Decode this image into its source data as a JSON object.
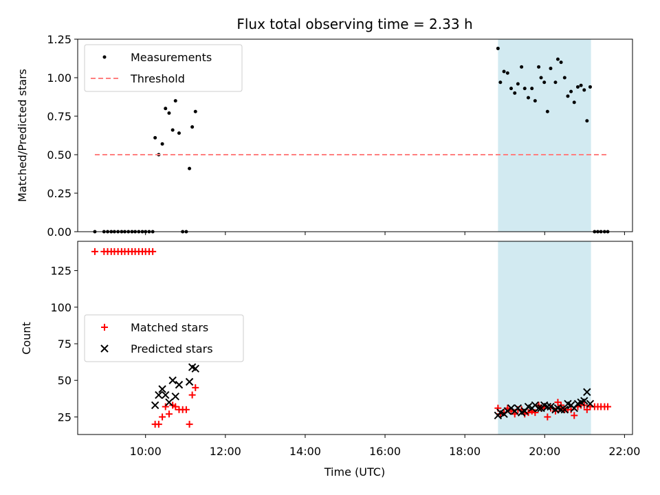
{
  "chart_data": {
    "type": "scatter",
    "title": "Flux total observing time = 2.33 h",
    "xlabel": "Time (UTC)",
    "x_unit": "hours UTC",
    "xlim": [
      8.3,
      22.2
    ],
    "x_ticks": [
      {
        "value": 10,
        "label": "10:00"
      },
      {
        "value": 12,
        "label": "12:00"
      },
      {
        "value": 14,
        "label": "14:00"
      },
      {
        "value": 16,
        "label": "16:00"
      },
      {
        "value": 18,
        "label": "18:00"
      },
      {
        "value": 20,
        "label": "20:00"
      },
      {
        "value": 22,
        "label": "22:00"
      }
    ],
    "shaded_region": {
      "x": [
        18.83,
        21.16
      ],
      "color": "#add8e6"
    },
    "panels": [
      {
        "ylabel": "Matched/Predicted stars",
        "ylim": [
          0,
          1.25
        ],
        "y_ticks": [
          {
            "value": 0,
            "label": "0.00"
          },
          {
            "value": 0.25,
            "label": "0.25"
          },
          {
            "value": 0.5,
            "label": "0.50"
          },
          {
            "value": 0.75,
            "label": "0.75"
          },
          {
            "value": 1.0,
            "label": "1.00"
          },
          {
            "value": 1.25,
            "label": "1.25"
          }
        ],
        "legend": {
          "position": "upper-left",
          "entries": [
            "Measurements",
            "Threshold"
          ]
        },
        "series": [
          {
            "name": "Measurements",
            "marker": "dot",
            "color": "#000000",
            "points": [
              [
                8.73,
                0
              ],
              [
                8.96,
                0
              ],
              [
                9.05,
                0
              ],
              [
                9.14,
                0
              ],
              [
                9.22,
                0
              ],
              [
                9.31,
                0
              ],
              [
                9.4,
                0
              ],
              [
                9.48,
                0
              ],
              [
                9.57,
                0
              ],
              [
                9.66,
                0
              ],
              [
                9.74,
                0
              ],
              [
                9.83,
                0
              ],
              [
                9.92,
                0
              ],
              [
                10.0,
                0
              ],
              [
                10.09,
                0
              ],
              [
                10.18,
                0
              ],
              [
                10.24,
                0.61
              ],
              [
                10.33,
                0.5
              ],
              [
                10.42,
                0.57
              ],
              [
                10.5,
                0.8
              ],
              [
                10.59,
                0.77
              ],
              [
                10.68,
                0.66
              ],
              [
                10.75,
                0.85
              ],
              [
                10.84,
                0.64
              ],
              [
                10.93,
                0
              ],
              [
                11.02,
                0
              ],
              [
                11.1,
                0.41
              ],
              [
                11.17,
                0.68
              ],
              [
                11.25,
                0.78
              ],
              [
                18.83,
                1.19
              ],
              [
                18.89,
                0.97
              ],
              [
                18.98,
                1.04
              ],
              [
                19.07,
                1.03
              ],
              [
                19.16,
                0.93
              ],
              [
                19.25,
                0.9
              ],
              [
                19.33,
                0.96
              ],
              [
                19.42,
                1.07
              ],
              [
                19.5,
                0.93
              ],
              [
                19.59,
                0.87
              ],
              [
                19.68,
                0.93
              ],
              [
                19.76,
                0.85
              ],
              [
                19.85,
                1.07
              ],
              [
                19.91,
                1.0
              ],
              [
                19.99,
                0.97
              ],
              [
                20.07,
                0.78
              ],
              [
                20.15,
                1.06
              ],
              [
                20.27,
                0.97
              ],
              [
                20.33,
                1.12
              ],
              [
                20.41,
                1.1
              ],
              [
                20.5,
                1.0
              ],
              [
                20.58,
                0.88
              ],
              [
                20.66,
                0.91
              ],
              [
                20.74,
                0.84
              ],
              [
                20.83,
                0.94
              ],
              [
                20.91,
                0.95
              ],
              [
                20.99,
                0.92
              ],
              [
                21.06,
                0.72
              ],
              [
                21.14,
                0.94
              ],
              [
                21.25,
                0
              ],
              [
                21.33,
                0
              ],
              [
                21.41,
                0
              ],
              [
                21.5,
                0
              ],
              [
                21.58,
                0
              ]
            ]
          },
          {
            "name": "Threshold",
            "line": "dashed",
            "color": "#ff7f7f",
            "points": [
              [
                8.73,
                0.5
              ],
              [
                21.6,
                0.5
              ]
            ]
          }
        ]
      },
      {
        "ylabel": "Count",
        "ylim": [
          13,
          145
        ],
        "y_ticks": [
          {
            "value": 25,
            "label": "25"
          },
          {
            "value": 50,
            "label": "50"
          },
          {
            "value": 75,
            "label": "75"
          },
          {
            "value": 100,
            "label": "100"
          },
          {
            "value": 125,
            "label": "125"
          }
        ],
        "legend": {
          "position": "center-left",
          "entries": [
            "Matched stars",
            "Predicted stars"
          ]
        },
        "series": [
          {
            "name": "Matched stars",
            "marker": "plus",
            "color": "#ff0000",
            "points": [
              [
                8.73,
                138
              ],
              [
                8.96,
                138
              ],
              [
                9.05,
                138
              ],
              [
                9.14,
                138
              ],
              [
                9.22,
                138
              ],
              [
                9.31,
                138
              ],
              [
                9.4,
                138
              ],
              [
                9.48,
                138
              ],
              [
                9.57,
                138
              ],
              [
                9.66,
                138
              ],
              [
                9.74,
                138
              ],
              [
                9.83,
                138
              ],
              [
                9.92,
                138
              ],
              [
                10.0,
                138
              ],
              [
                10.09,
                138
              ],
              [
                10.18,
                138
              ],
              [
                10.24,
                20
              ],
              [
                10.33,
                20
              ],
              [
                10.42,
                25
              ],
              [
                10.5,
                32
              ],
              [
                10.59,
                27
              ],
              [
                10.68,
                33
              ],
              [
                10.75,
                32
              ],
              [
                10.84,
                30
              ],
              [
                10.93,
                30
              ],
              [
                11.02,
                30
              ],
              [
                11.1,
                20
              ],
              [
                11.17,
                40
              ],
              [
                11.25,
                45
              ],
              [
                18.83,
                31
              ],
              [
                18.89,
                27
              ],
              [
                18.98,
                28
              ],
              [
                19.07,
                31
              ],
              [
                19.16,
                29
              ],
              [
                19.25,
                27
              ],
              [
                19.33,
                30
              ],
              [
                19.42,
                30
              ],
              [
                19.5,
                27
              ],
              [
                19.59,
                28
              ],
              [
                19.68,
                29
              ],
              [
                19.76,
                28
              ],
              [
                19.85,
                33
              ],
              [
                19.91,
                31
              ],
              [
                19.99,
                32
              ],
              [
                20.07,
                25
              ],
              [
                20.15,
                31
              ],
              [
                20.27,
                29
              ],
              [
                20.33,
                35
              ],
              [
                20.41,
                33
              ],
              [
                20.5,
                30
              ],
              [
                20.58,
                30
              ],
              [
                20.66,
                30
              ],
              [
                20.74,
                26
              ],
              [
                20.83,
                32
              ],
              [
                20.91,
                33
              ],
              [
                20.99,
                33
              ],
              [
                21.06,
                30
              ],
              [
                21.14,
                32
              ],
              [
                21.25,
                32
              ],
              [
                21.33,
                32
              ],
              [
                21.41,
                32
              ],
              [
                21.5,
                32
              ],
              [
                21.58,
                32
              ]
            ]
          },
          {
            "name": "Predicted stars",
            "marker": "x",
            "color": "#000000",
            "points": [
              [
                10.24,
                33
              ],
              [
                10.33,
                40
              ],
              [
                10.42,
                44
              ],
              [
                10.5,
                40
              ],
              [
                10.59,
                35
              ],
              [
                10.68,
                50
              ],
              [
                10.75,
                39
              ],
              [
                10.84,
                47
              ],
              [
                11.1,
                49
              ],
              [
                11.17,
                59
              ],
              [
                11.25,
                58
              ],
              [
                18.83,
                26
              ],
              [
                18.89,
                28
              ],
              [
                18.98,
                27
              ],
              [
                19.07,
                29
              ],
              [
                19.16,
                31
              ],
              [
                19.25,
                29
              ],
              [
                19.33,
                31
              ],
              [
                19.42,
                28
              ],
              [
                19.5,
                29
              ],
              [
                19.59,
                32
              ],
              [
                19.68,
                31
              ],
              [
                19.76,
                33
              ],
              [
                19.85,
                31
              ],
              [
                19.91,
                31
              ],
              [
                19.99,
                33
              ],
              [
                20.07,
                32
              ],
              [
                20.15,
                32
              ],
              [
                20.27,
                30
              ],
              [
                20.33,
                31
              ],
              [
                20.41,
                30
              ],
              [
                20.5,
                30
              ],
              [
                20.58,
                34
              ],
              [
                20.66,
                33
              ],
              [
                20.74,
                31
              ],
              [
                20.83,
                34
              ],
              [
                20.91,
                35
              ],
              [
                20.99,
                36
              ],
              [
                21.06,
                42
              ],
              [
                21.14,
                34
              ]
            ]
          }
        ]
      }
    ]
  }
}
